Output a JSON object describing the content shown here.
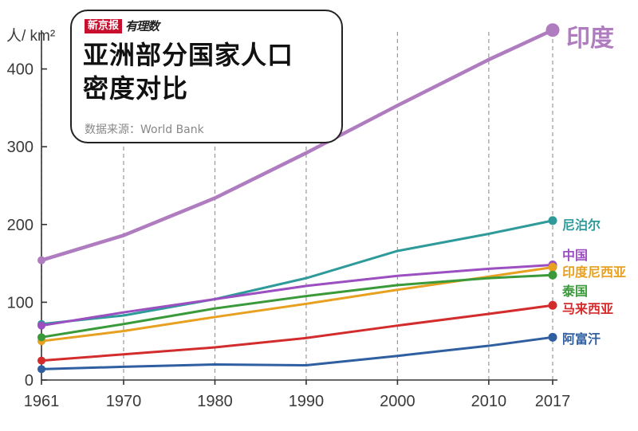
{
  "header": {
    "brand_main": "新京报",
    "brand_sub": "有理数",
    "title_line1": "亚洲部分国家人口",
    "title_line2": "密度对比",
    "source": "数据来源：World Bank"
  },
  "chart_data": {
    "type": "line",
    "title": "亚洲部分国家人口密度对比",
    "ylabel": "人/ km²",
    "xlabel": "",
    "xlim": [
      1961,
      2017
    ],
    "ylim": [
      0,
      460
    ],
    "x_ticks": [
      1961,
      1970,
      1980,
      1990,
      2000,
      2010,
      2017
    ],
    "y_ticks": [
      0,
      100,
      200,
      300,
      400
    ],
    "grid": {
      "vertical_dashed": true,
      "horizontal": false
    },
    "legend": "direct labels at right end",
    "series": [
      {
        "name": "印度",
        "color": "#b07cc0",
        "x": [
          1961,
          1970,
          1980,
          1990,
          2000,
          2010,
          2017
        ],
        "y": [
          154,
          186,
          234,
          292,
          353,
          412,
          450
        ]
      },
      {
        "name": "尼泊尔",
        "color": "#2e9a9a",
        "x": [
          1961,
          1970,
          1980,
          1990,
          2000,
          2010,
          2017
        ],
        "y": [
          72,
          83,
          104,
          131,
          166,
          188,
          205
        ]
      },
      {
        "name": "中国",
        "color": "#9b4fc0",
        "x": [
          1961,
          1970,
          1980,
          1990,
          2000,
          2010,
          2017
        ],
        "y": [
          70,
          87,
          104,
          121,
          134,
          143,
          148
        ]
      },
      {
        "name": "印度尼西亚",
        "color": "#e8a020",
        "x": [
          1961,
          1970,
          1980,
          1990,
          2000,
          2010,
          2017
        ],
        "y": [
          50,
          63,
          81,
          98,
          116,
          133,
          145
        ]
      },
      {
        "name": "泰国",
        "color": "#3a9a3a",
        "x": [
          1961,
          1970,
          1980,
          1990,
          2000,
          2010,
          2017
        ],
        "y": [
          55,
          72,
          92,
          108,
          122,
          131,
          135
        ]
      },
      {
        "name": "马来西亚",
        "color": "#d32c2c",
        "x": [
          1961,
          1970,
          1980,
          1990,
          2000,
          2010,
          2017
        ],
        "y": [
          25,
          33,
          42,
          54,
          70,
          85,
          96
        ]
      },
      {
        "name": "阿富汗",
        "color": "#2f5fa0",
        "x": [
          1961,
          1970,
          1980,
          1990,
          2000,
          2010,
          2017
        ],
        "y": [
          14,
          17,
          20,
          19,
          31,
          44,
          55
        ]
      }
    ]
  }
}
